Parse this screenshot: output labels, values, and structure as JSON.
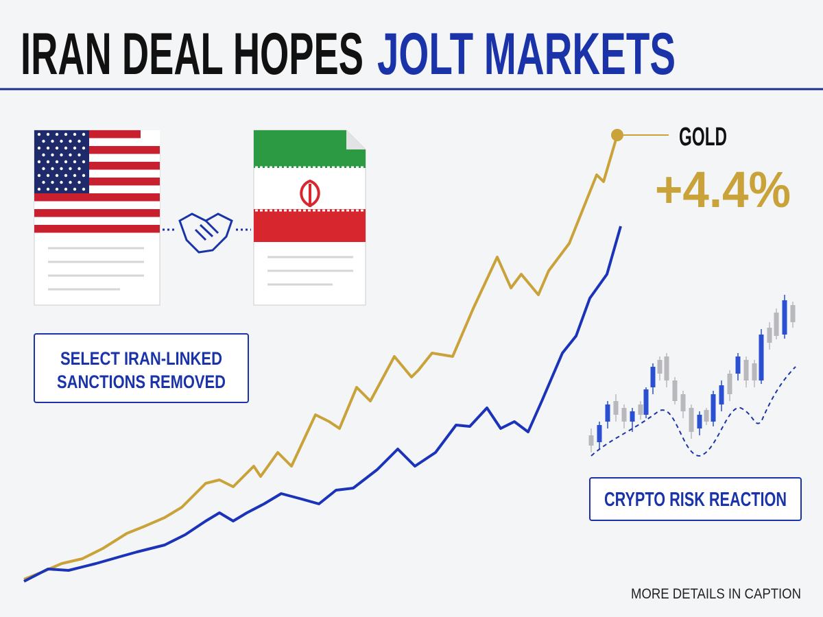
{
  "header": {
    "title_part1": "IRAN DEAL HOPES",
    "title_part2": "JOLT MARKETS"
  },
  "gold": {
    "label": "GOLD",
    "change": "+4.4%"
  },
  "sanctions": {
    "lines": [
      "SELECT IRAN-LINKED",
      "SANCTIONS REMOVED"
    ]
  },
  "crypto": {
    "label": "CRYPTO RISK REACTION"
  },
  "footer": {
    "note": "MORE DETAILS IN CAPTION"
  }
}
